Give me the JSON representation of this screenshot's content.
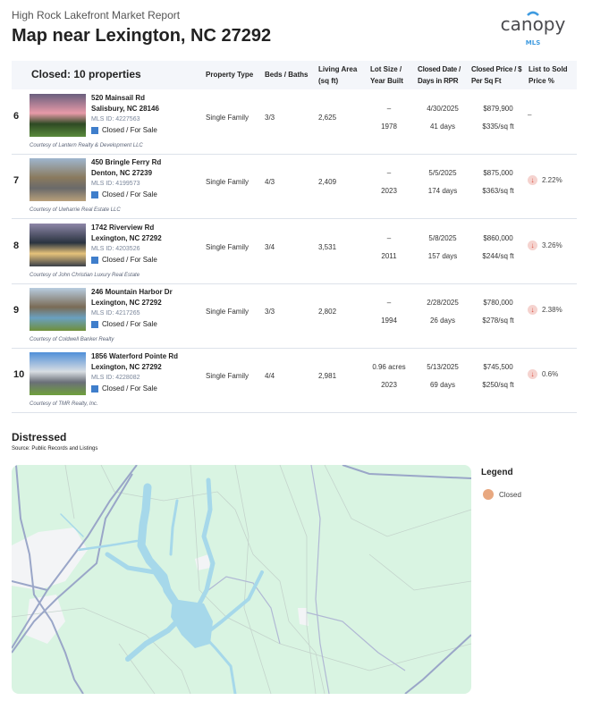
{
  "header": {
    "report_title": "High Rock Lakefront Market Report",
    "page_title": "Map near Lexington, NC 27292",
    "logo_text": "canopy",
    "logo_sub": "MLS"
  },
  "table": {
    "title": "Closed: 10 properties",
    "columns": [
      "Property Type",
      "Beds / Baths",
      "Living Area (sq ft)",
      "Lot Size / Year Built",
      "Closed Date / Days in RPR",
      "Closed Price / $ Per Sq Ft",
      "List to Sold Price %"
    ],
    "rows": [
      {
        "num": "6",
        "street": "520 Mainsail Rd",
        "city": "Salisbury, NC 28146",
        "mls": "MLS ID: 4227563",
        "status": "Closed / For Sale",
        "courtesy": "Courtesy of Lantern Realty & Development LLC",
        "type": "Single Family",
        "beds": "3/3",
        "area": "2,625",
        "lot": "–",
        "year": "1978",
        "date": "4/30/2025",
        "days": "41 days",
        "price": "$879,900",
        "ppsf": "$335/sq ft",
        "change": "–",
        "down": false
      },
      {
        "num": "7",
        "street": "450 Bringle Ferry Rd",
        "city": "Denton, NC 27239",
        "mls": "MLS ID: 4199573",
        "status": "Closed / For Sale",
        "courtesy": "Courtesy of Uwharrie Real Estate LLC",
        "type": "Single Family",
        "beds": "4/3",
        "area": "2,409",
        "lot": "–",
        "year": "2023",
        "date": "5/5/2025",
        "days": "174 days",
        "price": "$875,000",
        "ppsf": "$363/sq ft",
        "change": "2.22%",
        "down": true
      },
      {
        "num": "8",
        "street": "1742 Riverview Rd",
        "city": "Lexington, NC 27292",
        "mls": "MLS ID: 4203526",
        "status": "Closed / For Sale",
        "courtesy": "Courtesy of John Christian Luxury Real Estate",
        "type": "Single Family",
        "beds": "3/4",
        "area": "3,531",
        "lot": "–",
        "year": "2011",
        "date": "5/8/2025",
        "days": "157 days",
        "price": "$860,000",
        "ppsf": "$244/sq ft",
        "change": "3.26%",
        "down": true
      },
      {
        "num": "9",
        "street": "246 Mountain Harbor Dr",
        "city": "Lexington, NC 27292",
        "mls": "MLS ID: 4217265",
        "status": "Closed / For Sale",
        "courtesy": "Courtesy of Coldwell Banker Realty",
        "type": "Single Family",
        "beds": "3/3",
        "area": "2,802",
        "lot": "–",
        "year": "1994",
        "date": "2/28/2025",
        "days": "26 days",
        "price": "$780,000",
        "ppsf": "$278/sq ft",
        "change": "2.38%",
        "down": true
      },
      {
        "num": "10",
        "street": "1856 Waterford Pointe Rd",
        "city": "Lexington, NC 27292",
        "mls": "MLS ID: 4228082",
        "status": "Closed / For Sale",
        "courtesy": "Courtesy of TMR Realty, Inc.",
        "type": "Single Family",
        "beds": "4/4",
        "area": "2,981",
        "lot": "0.96 acres",
        "year": "2023",
        "date": "5/13/2025",
        "days": "69 days",
        "price": "$745,500",
        "ppsf": "$250/sq ft",
        "change": "0.6%",
        "down": true
      }
    ]
  },
  "section": {
    "title": "Distressed",
    "source": "Source: Public Records and Listings"
  },
  "legend": {
    "title": "Legend",
    "items": [
      {
        "label": "Closed",
        "color": "#e8a880"
      }
    ]
  },
  "colors": {
    "status": "#3f7ecb",
    "down_arrow": "#d9463a",
    "map_land": "#d9f4e2",
    "water": "#a6d8ea"
  }
}
